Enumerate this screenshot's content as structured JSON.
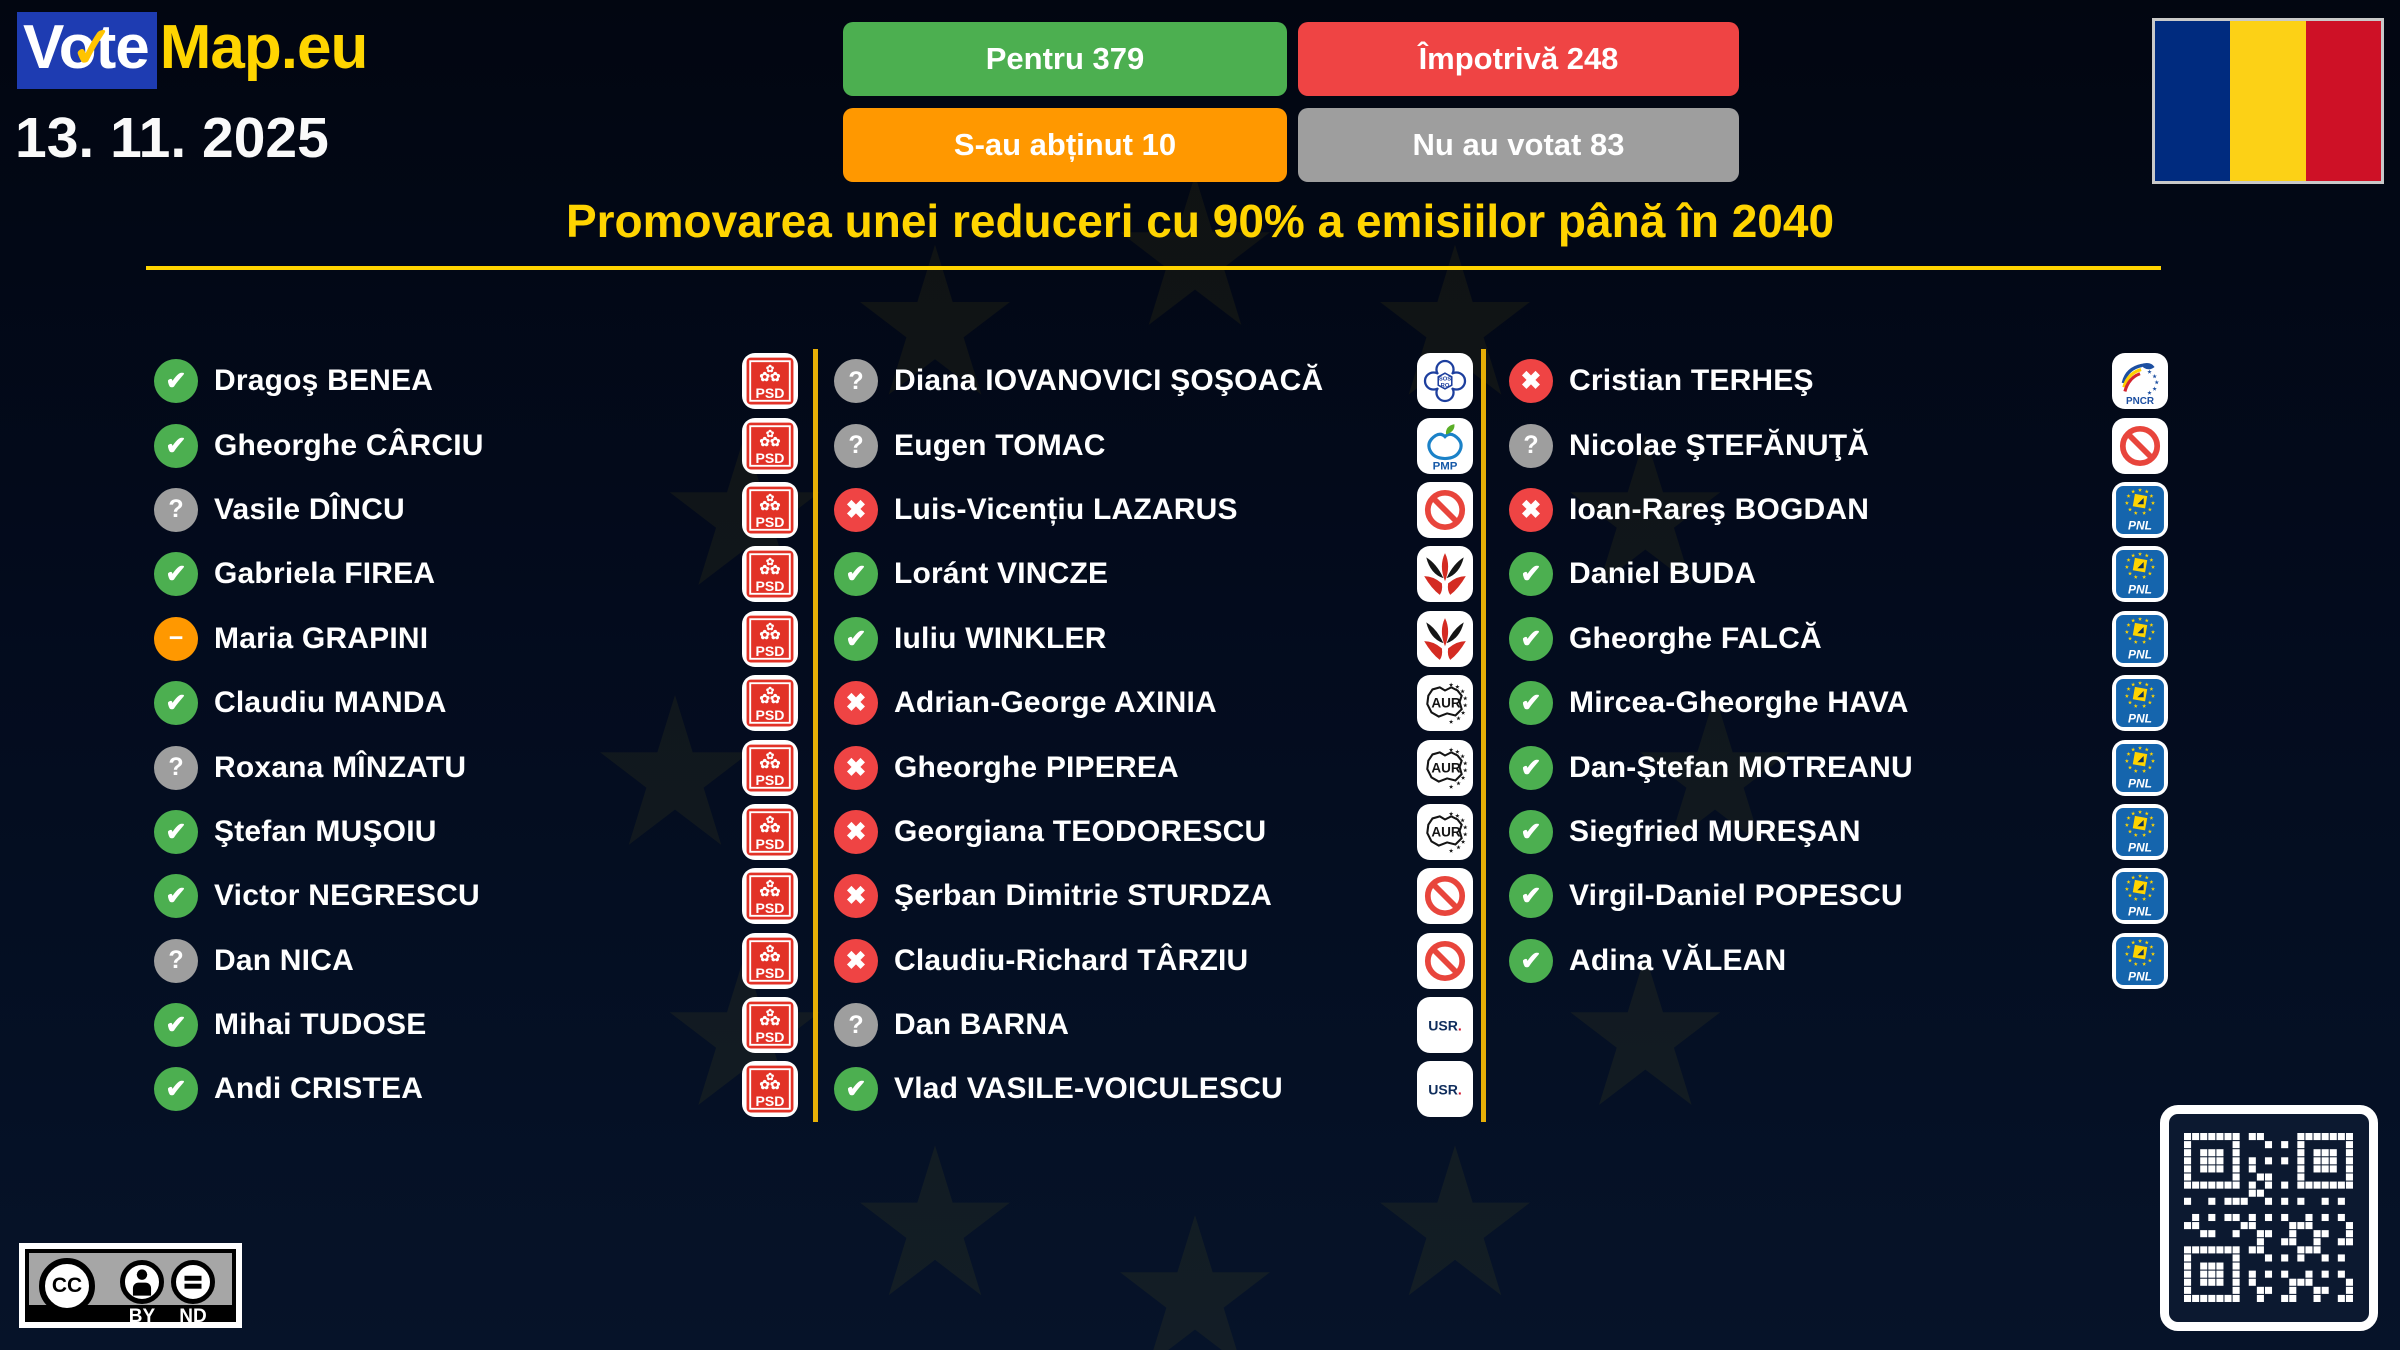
{
  "header": {
    "logo": {
      "vote": "Vote",
      "map": "Map.eu"
    },
    "date": "13. 11. 2025",
    "buttons": [
      {
        "label": "Pentru 379",
        "color": "#4caf50"
      },
      {
        "label": "Împotrivă 248",
        "color": "#ef4444"
      },
      {
        "label": "S-au abținut 10",
        "color": "#ff9800"
      },
      {
        "label": "Nu au votat 83",
        "color": "#9e9e9e"
      }
    ],
    "flag_colors": [
      "#002B7F",
      "#FCD116",
      "#CE1126"
    ]
  },
  "title": "Promovarea unei reduceri cu 90% a emisiilor până în 2040",
  "accent_colors": {
    "gold_rule": "#ffd400",
    "column_separator": "#e7af06",
    "logo_blue": "#1e3cb2",
    "logo_yellow": "#ffd500"
  },
  "legend": {
    "for": {
      "color": "#4caf50",
      "glyph": "✔",
      "icon": "check-icon"
    },
    "against": {
      "color": "#ef4444",
      "glyph": "✖",
      "icon": "x-icon"
    },
    "unknown": {
      "color": "#9e9e9e",
      "glyph": "?",
      "icon": "question-icon"
    },
    "abstain": {
      "color": "#ff9800",
      "glyph": "−",
      "icon": "minus-icon"
    }
  },
  "parties": {
    "PSD": {
      "label": "PSD"
    },
    "SOS": {
      "label": "SOS RO"
    },
    "PMP": {
      "label": "PMP"
    },
    "UDMR": {
      "label": ""
    },
    "AUR": {
      "label": "AUR"
    },
    "USR": {
      "label": "USR."
    },
    "IND": {
      "label": ""
    },
    "PNCR": {
      "label": "PNCR"
    },
    "PNL": {
      "label": "PNL"
    }
  },
  "columns": [
    [
      {
        "name": "Dragoş BENEA",
        "vote": "for",
        "party": "PSD"
      },
      {
        "name": "Gheorghe CÂRCIU",
        "vote": "for",
        "party": "PSD"
      },
      {
        "name": "Vasile DÎNCU",
        "vote": "unknown",
        "party": "PSD"
      },
      {
        "name": "Gabriela FIREA",
        "vote": "for",
        "party": "PSD"
      },
      {
        "name": "Maria GRAPINI",
        "vote": "abstain",
        "party": "PSD"
      },
      {
        "name": "Claudiu MANDA",
        "vote": "for",
        "party": "PSD"
      },
      {
        "name": "Roxana MÎNZATU",
        "vote": "unknown",
        "party": "PSD"
      },
      {
        "name": "Ştefan MUŞOIU",
        "vote": "for",
        "party": "PSD"
      },
      {
        "name": "Victor NEGRESCU",
        "vote": "for",
        "party": "PSD"
      },
      {
        "name": "Dan NICA",
        "vote": "unknown",
        "party": "PSD"
      },
      {
        "name": "Mihai TUDOSE",
        "vote": "for",
        "party": "PSD"
      },
      {
        "name": "Andi CRISTEA",
        "vote": "for",
        "party": "PSD"
      }
    ],
    [
      {
        "name": "Diana IOVANOVICI ŞOŞOACĂ",
        "vote": "unknown",
        "party": "SOS"
      },
      {
        "name": "Eugen TOMAC",
        "vote": "unknown",
        "party": "PMP"
      },
      {
        "name": "Luis-Vicențiu LAZARUS",
        "vote": "against",
        "party": "IND"
      },
      {
        "name": "Loránt VINCZE",
        "vote": "for",
        "party": "UDMR"
      },
      {
        "name": "Iuliu WINKLER",
        "vote": "for",
        "party": "UDMR"
      },
      {
        "name": "Adrian-George AXINIA",
        "vote": "against",
        "party": "AUR"
      },
      {
        "name": "Gheorghe PIPEREA",
        "vote": "against",
        "party": "AUR"
      },
      {
        "name": "Georgiana TEODORESCU",
        "vote": "against",
        "party": "AUR"
      },
      {
        "name": "Şerban Dimitrie STURDZA",
        "vote": "against",
        "party": "IND"
      },
      {
        "name": "Claudiu-Richard TÂRZIU",
        "vote": "against",
        "party": "IND"
      },
      {
        "name": "Dan BARNA",
        "vote": "unknown",
        "party": "USR"
      },
      {
        "name": "Vlad VASILE-VOICULESCU",
        "vote": "for",
        "party": "USR"
      }
    ],
    [
      {
        "name": "Cristian TERHEŞ",
        "vote": "against",
        "party": "PNCR"
      },
      {
        "name": "Nicolae ŞTEFĂNUŢĂ",
        "vote": "unknown",
        "party": "IND"
      },
      {
        "name": "Ioan-Rareş BOGDAN",
        "vote": "against",
        "party": "PNL"
      },
      {
        "name": "Daniel BUDA",
        "vote": "for",
        "party": "PNL"
      },
      {
        "name": "Gheorghe FALCĂ",
        "vote": "for",
        "party": "PNL"
      },
      {
        "name": "Mircea-Gheorghe HAVA",
        "vote": "for",
        "party": "PNL"
      },
      {
        "name": "Dan-Ştefan MOTREANU",
        "vote": "for",
        "party": "PNL"
      },
      {
        "name": "Siegfried MUREŞAN",
        "vote": "for",
        "party": "PNL"
      },
      {
        "name": "Virgil-Daniel POPESCU",
        "vote": "for",
        "party": "PNL"
      },
      {
        "name": "Adina VĂLEAN",
        "vote": "for",
        "party": "PNL"
      }
    ]
  ],
  "license": {
    "cc": "CC",
    "by": "BY",
    "nd": "ND"
  }
}
